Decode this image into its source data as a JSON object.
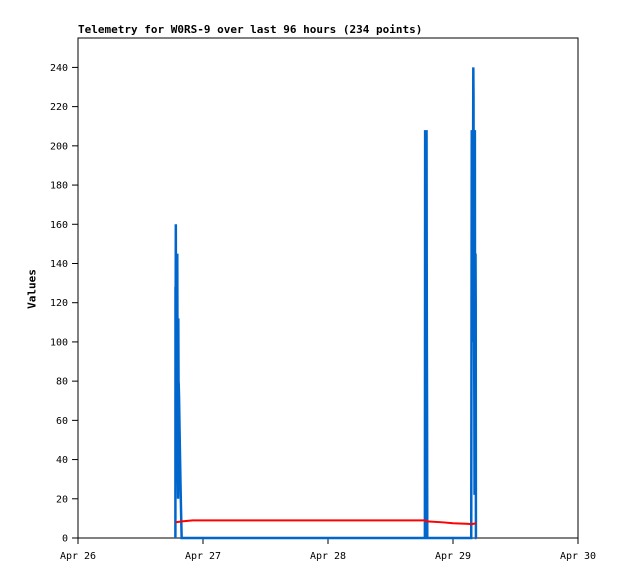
{
  "chart_data": {
    "type": "line",
    "title": "Telemetry for W0RS-9 over last 96 hours (234 points)",
    "xlabel": "",
    "ylabel": "Values",
    "x_ticks": [
      "Apr 26",
      "Apr 27",
      "Apr 28",
      "Apr 29",
      "Apr 30"
    ],
    "xlim": [
      "Apr 26 00:00",
      "Apr 30 00:00"
    ],
    "ylim": [
      0,
      255
    ],
    "y_ticks": [
      0,
      20,
      40,
      60,
      80,
      100,
      120,
      140,
      160,
      180,
      200,
      220,
      240
    ],
    "grid": false,
    "legend": "none",
    "series": [
      {
        "color": "#0066cc",
        "x_unit": "hours since Apr 26 00:00",
        "points": [
          [
            18.7,
            0
          ],
          [
            18.72,
            128
          ],
          [
            18.75,
            120
          ],
          [
            18.78,
            160
          ],
          [
            18.82,
            115
          ],
          [
            18.86,
            90
          ],
          [
            18.9,
            40
          ],
          [
            18.94,
            72
          ],
          [
            18.98,
            65
          ],
          [
            19.02,
            40
          ],
          [
            19.06,
            145
          ],
          [
            19.1,
            100
          ],
          [
            19.14,
            60
          ],
          [
            19.18,
            30
          ],
          [
            19.22,
            20
          ],
          [
            19.26,
            112
          ],
          [
            19.3,
            80
          ],
          [
            19.34,
            78
          ],
          [
            19.4,
            72
          ],
          [
            19.5,
            55
          ],
          [
            19.6,
            40
          ],
          [
            19.7,
            25
          ],
          [
            19.8,
            12
          ],
          [
            19.9,
            0
          ],
          [
            19.95,
            0
          ],
          [
            40.0,
            0
          ],
          [
            66.6,
            0
          ],
          [
            66.65,
            208
          ],
          [
            66.68,
            112
          ],
          [
            66.72,
            98
          ],
          [
            66.76,
            68
          ],
          [
            66.8,
            45
          ],
          [
            66.84,
            208
          ],
          [
            66.88,
            120
          ],
          [
            66.92,
            208
          ],
          [
            66.95,
            145
          ],
          [
            66.98,
            100
          ],
          [
            67.02,
            64
          ],
          [
            67.06,
            0
          ],
          [
            75.5,
            0
          ],
          [
            75.6,
            208
          ],
          [
            75.62,
            105
          ],
          [
            75.66,
            130
          ],
          [
            75.7,
            145
          ],
          [
            75.74,
            120
          ],
          [
            75.78,
            145
          ],
          [
            75.82,
            100
          ],
          [
            75.86,
            200
          ],
          [
            75.9,
            240
          ],
          [
            75.94,
            225
          ],
          [
            75.98,
            157
          ],
          [
            76.02,
            202
          ],
          [
            76.06,
            95
          ],
          [
            76.1,
            68
          ],
          [
            76.14,
            22
          ],
          [
            76.2,
            208
          ],
          [
            76.24,
            60
          ],
          [
            76.28,
            65
          ],
          [
            76.32,
            145
          ],
          [
            76.36,
            120
          ],
          [
            76.4,
            0
          ],
          [
            76.5,
            0
          ]
        ]
      },
      {
        "color": "#ff0000",
        "x_unit": "hours since Apr 26 00:00",
        "points": [
          [
            18.7,
            8
          ],
          [
            20,
            8.5
          ],
          [
            22,
            9
          ],
          [
            30,
            9
          ],
          [
            40,
            9
          ],
          [
            50,
            9
          ],
          [
            60,
            9
          ],
          [
            66.6,
            9
          ],
          [
            67,
            8.5
          ],
          [
            70,
            8
          ],
          [
            72,
            7.5
          ],
          [
            75,
            7.2
          ],
          [
            75.5,
            7
          ],
          [
            76.5,
            7.5
          ]
        ]
      }
    ]
  }
}
